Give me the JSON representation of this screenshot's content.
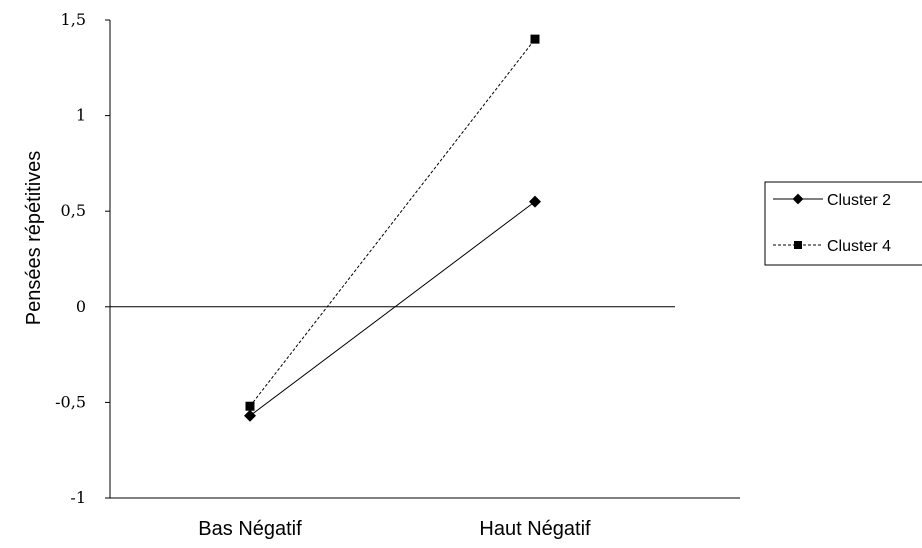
{
  "chart_data": {
    "type": "line",
    "title": "",
    "xlabel": "",
    "ylabel": "Pensées répétitives",
    "categories": [
      "Bas Négatif",
      "Haut Négatif"
    ],
    "ylim": [
      -1,
      1.5
    ],
    "y_ticks": [
      -1,
      -0.5,
      0,
      0.5,
      1,
      1.5
    ],
    "y_tick_labels": [
      "-1",
      "-0,5",
      "0",
      "0,5",
      "1",
      "1,5"
    ],
    "grid": false,
    "zero_line": true,
    "legend_position": "right",
    "series": [
      {
        "name": "Cluster 2",
        "values": [
          -0.57,
          0.55
        ],
        "marker": "diamond",
        "line_style": "solid",
        "color": "#000000"
      },
      {
        "name": "Cluster 4",
        "values": [
          -0.52,
          1.4
        ],
        "marker": "square",
        "line_style": "dashed",
        "color": "#000000"
      }
    ]
  }
}
